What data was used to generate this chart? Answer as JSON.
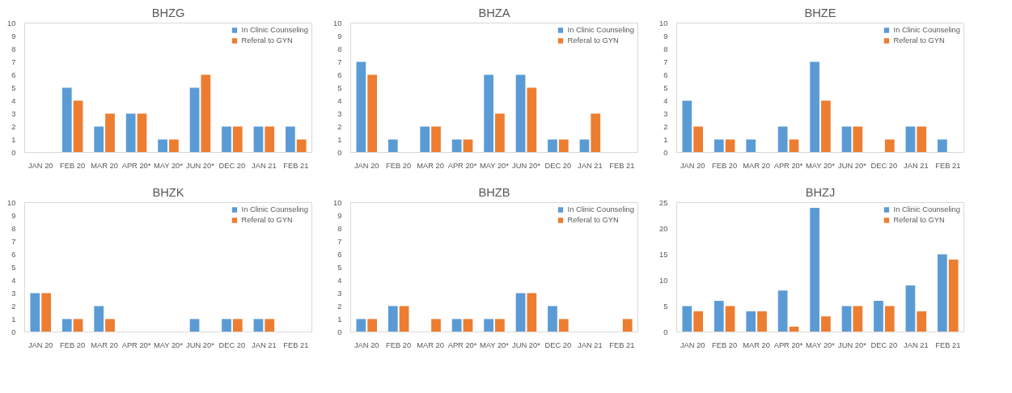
{
  "chart_data": [
    {
      "type": "bar",
      "title": "BHZG",
      "categories": [
        "JAN 20",
        "FEB 20",
        "MAR 20",
        "APR 20*",
        "MAY 20*",
        "JUN 20*",
        "DEC 20",
        "JAN 21",
        "FEB 21"
      ],
      "ylim": [
        0,
        10
      ],
      "yticks": [
        0,
        1,
        2,
        3,
        4,
        5,
        6,
        7,
        8,
        9,
        10
      ],
      "grid": false,
      "legend": "top right",
      "series": [
        {
          "name": "In Clinic Counseling",
          "color": "#5b9bd5",
          "values": [
            0,
            5,
            2,
            3,
            1,
            5,
            2,
            2,
            2
          ]
        },
        {
          "name": "Referal to GYN",
          "color": "#ed7d31",
          "values": [
            0,
            4,
            3,
            3,
            1,
            6,
            2,
            2,
            1
          ]
        }
      ]
    },
    {
      "type": "bar",
      "title": "BHZA",
      "categories": [
        "JAN 20",
        "FEB 20",
        "MAR 20",
        "APR 20*",
        "MAY 20*",
        "JUN 20*",
        "DEC 20",
        "JAN 21",
        "FEB 21"
      ],
      "ylim": [
        0,
        10
      ],
      "yticks": [
        0,
        1,
        2,
        3,
        4,
        5,
        6,
        7,
        8,
        9,
        10
      ],
      "grid": false,
      "legend": "top right",
      "series": [
        {
          "name": "In Clinic Counseling",
          "color": "#5b9bd5",
          "values": [
            7,
            1,
            2,
            1,
            6,
            6,
            1,
            1,
            0
          ]
        },
        {
          "name": "Referal to GYN",
          "color": "#ed7d31",
          "values": [
            6,
            0,
            2,
            1,
            3,
            5,
            1,
            3,
            0
          ]
        }
      ]
    },
    {
      "type": "bar",
      "title": "BHZE",
      "categories": [
        "JAN 20",
        "FEB 20",
        "MAR 20",
        "APR 20*",
        "MAY 20*",
        "JUN 20*",
        "DEC 20",
        "JAN 21",
        "FEB 21"
      ],
      "ylim": [
        0,
        10
      ],
      "yticks": [
        0,
        1,
        2,
        3,
        4,
        5,
        6,
        7,
        8,
        9,
        10
      ],
      "grid": false,
      "legend": "top right",
      "series": [
        {
          "name": "In Clinic Counseling",
          "color": "#5b9bd5",
          "values": [
            4,
            1,
            1,
            2,
            7,
            2,
            0,
            2,
            1
          ]
        },
        {
          "name": "Referal to GYN",
          "color": "#ed7d31",
          "values": [
            2,
            1,
            0,
            1,
            4,
            2,
            1,
            2,
            0
          ]
        }
      ]
    },
    {
      "type": "bar",
      "title": "BHZK",
      "categories": [
        "JAN 20",
        "FEB 20",
        "MAR 20",
        "APR 20*",
        "MAY 20*",
        "JUN 20*",
        "DEC 20",
        "JAN 21",
        "FEB 21"
      ],
      "ylim": [
        0,
        10
      ],
      "yticks": [
        0,
        1,
        2,
        3,
        4,
        5,
        6,
        7,
        8,
        9,
        10
      ],
      "grid": false,
      "legend": "top right",
      "series": [
        {
          "name": "In Clinic Counseling",
          "color": "#5b9bd5",
          "values": [
            3,
            1,
            2,
            0,
            0,
            1,
            1,
            1,
            0
          ]
        },
        {
          "name": "Referal to GYN",
          "color": "#ed7d31",
          "values": [
            3,
            1,
            1,
            0,
            0,
            0,
            1,
            1,
            0
          ]
        }
      ]
    },
    {
      "type": "bar",
      "title": "BHZB",
      "categories": [
        "JAN 20",
        "FEB 20",
        "MAR 20",
        "APR 20*",
        "MAY 20*",
        "JUN 20*",
        "DEC 20",
        "JAN 21",
        "FEB 21"
      ],
      "ylim": [
        0,
        10
      ],
      "yticks": [
        0,
        1,
        2,
        3,
        4,
        5,
        6,
        7,
        8,
        9,
        10
      ],
      "grid": false,
      "legend": "top right",
      "series": [
        {
          "name": "In Clinic Counseling",
          "color": "#5b9bd5",
          "values": [
            1,
            2,
            0,
            1,
            1,
            3,
            2,
            0,
            0
          ]
        },
        {
          "name": "Referal to GYN",
          "color": "#ed7d31",
          "values": [
            1,
            2,
            1,
            1,
            1,
            3,
            1,
            0,
            1
          ]
        }
      ]
    },
    {
      "type": "bar",
      "title": "BHZJ",
      "categories": [
        "JAN 20",
        "FEB 20",
        "MAR 20",
        "APR 20*",
        "MAY 20*",
        "JUN 20*",
        "DEC 20",
        "JAN 21",
        "FEB 21"
      ],
      "ylim": [
        0,
        25
      ],
      "yticks": [
        0,
        5,
        10,
        15,
        20,
        25
      ],
      "grid": false,
      "legend": "top right",
      "series": [
        {
          "name": "In Clinic Counseling",
          "color": "#5b9bd5",
          "values": [
            5,
            6,
            4,
            8,
            24,
            5,
            6,
            9,
            15
          ]
        },
        {
          "name": "Referal to GYN",
          "color": "#ed7d31",
          "values": [
            4,
            5,
            4,
            1,
            3,
            5,
            5,
            4,
            14
          ]
        }
      ]
    }
  ]
}
